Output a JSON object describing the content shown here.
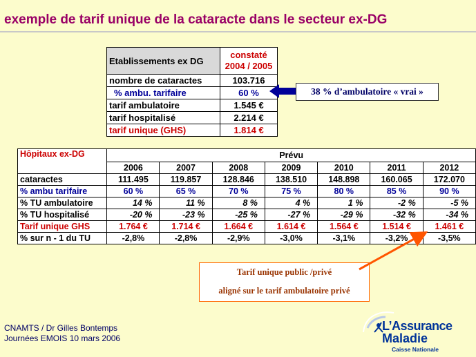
{
  "title": "exemple de tarif unique de la cataracte dans le secteur ex-DG",
  "table1": {
    "header_label": "Etablissements ex DG",
    "header_col": [
      "constaté",
      "2004 / 2005"
    ],
    "rows": [
      {
        "label": "nombre de cataractes",
        "value": "103.716",
        "style": ""
      },
      {
        "label": "% ambu. tarifaire",
        "value": "60 %",
        "style": "blue"
      },
      {
        "label": "tarif ambulatoire",
        "value": "1.545 €",
        "style": ""
      },
      {
        "label": "tarif hospitalisé",
        "value": "2.214 €",
        "style": ""
      },
      {
        "label": "tarif unique (GHS)",
        "value": "1.814 €",
        "style": "red"
      }
    ]
  },
  "callout1": "38 % d’ambulatoire « vrai »",
  "table2": {
    "corner_label": "Hôpitaux ex-DG",
    "group_label": "Prévu",
    "years": [
      "2006",
      "2007",
      "2008",
      "2009",
      "2010",
      "2011",
      "2012"
    ],
    "rows": [
      {
        "label": "cataractes",
        "style": "",
        "values": [
          "111.495",
          "119.857",
          "128.846",
          "138.510",
          "148.898",
          "160.065",
          "172.070"
        ]
      },
      {
        "label": "% ambu tarifaire",
        "style": "blue",
        "values": [
          "60 %",
          "65 %",
          "70 %",
          "75 %",
          "80 %",
          "85 %",
          "90 %"
        ]
      },
      {
        "label": "% TU ambulatoire",
        "style": "itl",
        "values": [
          "14 %",
          "11 %",
          "8 %",
          "4 %",
          "1 %",
          "-2 %",
          "-5 %"
        ]
      },
      {
        "label": "% TU hospitalisé",
        "style": "itl",
        "values": [
          "-20 %",
          "-23 %",
          "-25 %",
          "-27 %",
          "-29 %",
          "-32 %",
          "-34 %"
        ]
      },
      {
        "label": "Tarif  unique GHS",
        "style": "red",
        "values": [
          "1.764 €",
          "1.714 €",
          "1.664 €",
          "1.614 €",
          "1.564 €",
          "1.514 €",
          "1.461 €"
        ]
      },
      {
        "label": "%  sur  n - 1 du TU",
        "style": "",
        "values": [
          "-2,8%",
          "-2,8%",
          "-2,9%",
          "-3,0%",
          "-3,1%",
          "-3,2%",
          "-3,5%"
        ]
      }
    ]
  },
  "callout2": [
    "Tarif  unique public /privé",
    "aligné sur le tarif ambulatoire privé"
  ],
  "footer": [
    "CNAMTS / Dr Gilles Bontemps",
    "Journées EMOIS 10 mars 2006"
  ],
  "logo": {
    "line1": "L’Assurance",
    "line2": "Maladie",
    "line3": "Caisse Nationale",
    "arc_text": "SÉCURITÉ SOCIALE"
  },
  "colors": {
    "background": "#fcfccc",
    "title": "#990066",
    "accent_red": "#cc0000",
    "accent_blue": "#000099",
    "logo_blue": "#003399"
  }
}
